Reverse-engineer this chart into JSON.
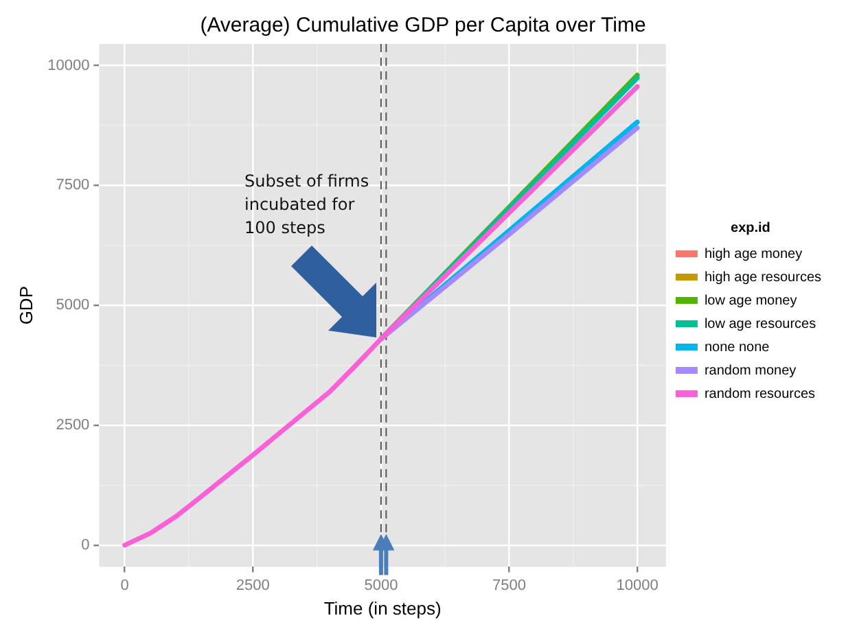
{
  "chart_data": {
    "type": "line",
    "title": "(Average) Cumulative GDP per Capita over Time",
    "xlabel": "Time (in steps)",
    "ylabel": "GDP",
    "legend_title": "exp.id",
    "legend": "right",
    "grid": true,
    "marker": "none",
    "line_style": "solid",
    "xlim": [
      -500,
      10560
    ],
    "ylim": [
      -450,
      10450
    ],
    "xticks": [
      0,
      2500,
      5000,
      7500,
      10000
    ],
    "yticks": [
      0,
      2500,
      5000,
      7500,
      10000
    ],
    "ref_lines": [
      {
        "axis": "x",
        "value": 5000,
        "color": "#555555",
        "line_style": "dashed"
      },
      {
        "axis": "x",
        "value": 5100,
        "color": "#555555",
        "line_style": "dashed"
      }
    ],
    "annotations": [
      "Subset of firms incubated for 100 steps"
    ],
    "series": [
      {
        "name": "high age money",
        "color": "#f8766d"
      },
      {
        "name": "high age resources",
        "color": "#c49a00"
      },
      {
        "name": "low age money",
        "color": "#53b400",
        "x": [
          5000,
          7500,
          10000
        ],
        "values": [
          4300,
          7050,
          9800
        ]
      },
      {
        "name": "low age resources",
        "color": "#00c094",
        "x": [
          5000,
          7500,
          10000
        ],
        "values": [
          4300,
          7020,
          9740
        ]
      },
      {
        "name": "none none",
        "color": "#00b6eb",
        "x": [
          5000,
          7500,
          10000
        ],
        "values": [
          4300,
          6560,
          8820
        ]
      },
      {
        "name": "random money",
        "color": "#a58aff",
        "x": [
          5000,
          7500,
          10000
        ],
        "values": [
          4300,
          6480,
          8700
        ]
      },
      {
        "name": "random resources",
        "color": "#fb61d7",
        "x": [
          0,
          500,
          1000,
          1500,
          2000,
          2500,
          3000,
          3500,
          4000,
          4500,
          5000,
          7500,
          10000
        ],
        "values": [
          0,
          250,
          600,
          1020,
          1450,
          1880,
          2320,
          2760,
          3200,
          3740,
          4300,
          6930,
          9560
        ]
      }
    ]
  }
}
